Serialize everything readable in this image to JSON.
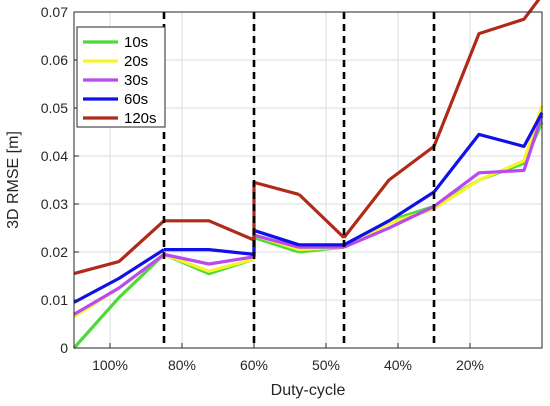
{
  "chart_data": {
    "type": "line",
    "xlabel": "Duty-cycle",
    "ylabel": "3D RMSE [m]",
    "ylim": [
      0,
      0.07
    ],
    "yticks": [
      "0",
      "0.01",
      "0.02",
      "0.03",
      "0.04",
      "0.05",
      "0.06",
      "0.07"
    ],
    "xlim": [
      0,
      13
    ],
    "xtick_positions": [
      1,
      3,
      5,
      7,
      9,
      11
    ],
    "xtick_labels": [
      "100%",
      "80%",
      "60%",
      "50%",
      "40%",
      "20%"
    ],
    "dividers": [
      2.5,
      5,
      7.5,
      10
    ],
    "grid": true,
    "legend_position": "top-left",
    "segments": [
      [
        0,
        1,
        2
      ],
      [
        2,
        3,
        4
      ],
      [
        4,
        5,
        6
      ],
      [
        6,
        7
      ],
      [
        7,
        8,
        9
      ],
      [
        9,
        10,
        11,
        12
      ]
    ],
    "x": [
      0,
      1.25,
      2.5,
      3.75,
      5,
      5,
      6.25,
      7.5,
      8.75,
      10,
      11.25,
      12.5,
      13
    ],
    "series": [
      {
        "name": "10s",
        "color": "#4dd93a",
        "values": [
          0,
          0.0105,
          0.0195,
          0.0155,
          0.0185,
          0.023,
          0.02,
          0.021,
          0.0265,
          0.0295,
          0.035,
          0.0385,
          0.047
        ]
      },
      {
        "name": "20s",
        "color": "#f5f52a",
        "values": [
          0.0065,
          0.0125,
          0.0195,
          0.016,
          0.0185,
          0.0235,
          0.0205,
          0.021,
          0.026,
          0.029,
          0.035,
          0.039,
          0.0505
        ]
      },
      {
        "name": "30s",
        "color": "#b84af0",
        "values": [
          0.007,
          0.0125,
          0.0195,
          0.0175,
          0.019,
          0.0235,
          0.021,
          0.021,
          0.025,
          0.0295,
          0.0365,
          0.037,
          0.0485
        ]
      },
      {
        "name": "60s",
        "color": "#1010e8",
        "values": [
          0.0095,
          0.0145,
          0.0205,
          0.0205,
          0.0195,
          0.0245,
          0.0215,
          0.0215,
          0.0265,
          0.0325,
          0.0445,
          0.042,
          0.049
        ]
      },
      {
        "name": "120s",
        "color": "#b02a1a",
        "values": [
          0.0155,
          0.018,
          0.0265,
          0.0265,
          0.0225,
          0.0345,
          0.032,
          0.023,
          0.035,
          0.042,
          0.0655,
          0.0685,
          0.0735
        ]
      }
    ]
  }
}
